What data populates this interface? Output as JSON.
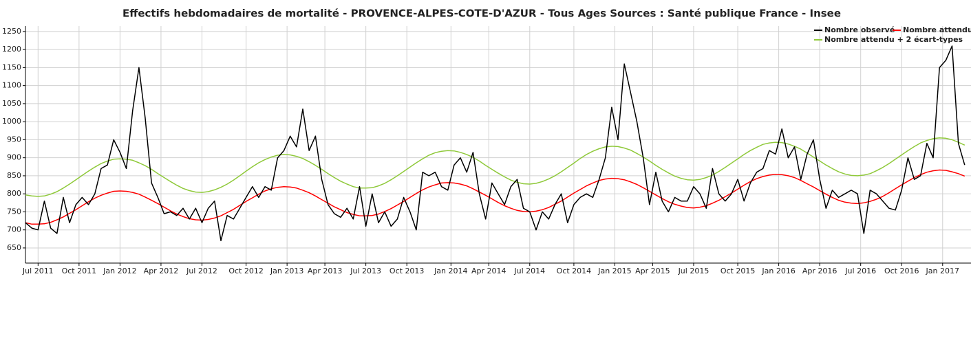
{
  "chart_data": {
    "type": "line",
    "title": "Effectifs hebdomadaires de mortalité - PROVENCE-ALPES-COTE-D'AZUR - Tous Ages Sources : Santé publique France - Insee",
    "x": [
      -4,
      -2,
      0,
      2,
      4,
      6,
      8,
      10,
      12,
      14,
      16,
      18,
      20,
      22,
      24,
      26,
      28,
      30,
      32,
      34,
      36,
      38,
      40,
      42,
      44,
      46,
      48,
      50,
      52,
      54,
      56,
      58,
      60,
      62,
      64,
      66,
      68,
      70,
      72,
      74,
      76,
      78,
      80,
      82,
      84,
      86,
      88,
      90,
      92,
      94,
      96,
      98,
      100,
      102,
      104,
      106,
      108,
      110,
      112,
      114,
      116,
      118,
      120,
      122,
      124,
      126,
      128,
      130,
      132,
      134,
      136,
      138,
      140,
      142,
      144,
      146,
      148,
      150,
      152,
      154,
      156,
      158,
      160,
      162,
      164,
      166,
      168,
      170,
      172,
      174,
      176,
      178,
      180,
      182,
      184,
      186,
      188,
      190,
      192,
      194,
      196,
      198,
      200,
      202,
      204,
      206,
      208,
      210,
      212,
      214,
      216,
      218,
      220,
      222,
      224,
      226,
      228,
      230,
      232,
      234,
      236,
      238,
      240,
      242,
      244,
      246,
      248,
      250,
      252,
      254,
      256,
      258,
      260,
      262,
      264,
      266,
      268,
      270,
      272,
      274,
      276,
      278,
      280,
      282,
      284,
      286,
      288,
      290,
      292,
      294
    ],
    "series": [
      {
        "name": "Nombre observé",
        "color": "#000000",
        "values": [
          720,
          705,
          700,
          780,
          705,
          690,
          790,
          720,
          770,
          790,
          770,
          800,
          870,
          880,
          950,
          915,
          870,
          1030,
          1150,
          1010,
          830,
          790,
          745,
          750,
          740,
          760,
          730,
          760,
          720,
          760,
          780,
          670,
          740,
          730,
          760,
          790,
          820,
          790,
          820,
          810,
          900,
          920,
          960,
          930,
          1035,
          920,
          960,
          840,
          770,
          745,
          735,
          760,
          730,
          820,
          710,
          800,
          720,
          750,
          710,
          730,
          790,
          750,
          700,
          860,
          850,
          860,
          820,
          810,
          880,
          900,
          860,
          915,
          800,
          730,
          830,
          800,
          770,
          820,
          840,
          760,
          750,
          700,
          750,
          730,
          770,
          800,
          720,
          770,
          790,
          800,
          790,
          840,
          900,
          1040,
          950,
          1160,
          1080,
          1000,
          900,
          770,
          860,
          780,
          750,
          790,
          780,
          780,
          820,
          800,
          760,
          870,
          800,
          780,
          800,
          840,
          780,
          830,
          860,
          870,
          920,
          910,
          980,
          900,
          930,
          840,
          910,
          950,
          840,
          760,
          810,
          790,
          800,
          810,
          800,
          690,
          810,
          800,
          780,
          760,
          755,
          810,
          900,
          840,
          850,
          940,
          900,
          1150,
          1170,
          1210,
          940,
          880
        ]
      },
      {
        "name": "Nombre attendu",
        "color": "#ff0000",
        "values": [
          720,
          716,
          716,
          717,
          721,
          728,
          736,
          746,
          756,
          767,
          778,
          788,
          796,
          802,
          807,
          808,
          807,
          804,
          799,
          791,
          782,
          773,
          763,
          753,
          744,
          737,
          731,
          728,
          727,
          729,
          733,
          739,
          748,
          757,
          768,
          779,
          789,
          799,
          808,
          814,
          818,
          820,
          819,
          816,
          810,
          803,
          794,
          784,
          774,
          764,
          756,
          748,
          743,
          739,
          739,
          740,
          744,
          751,
          759,
          769,
          779,
          790,
          801,
          811,
          819,
          825,
          830,
          831,
          830,
          827,
          822,
          814,
          805,
          796,
          786,
          776,
          767,
          760,
          754,
          751,
          750,
          752,
          756,
          762,
          771,
          780,
          791,
          802,
          812,
          822,
          830,
          837,
          841,
          843,
          842,
          839,
          833,
          826,
          817,
          807,
          797,
          787,
          778,
          771,
          766,
          762,
          761,
          763,
          767,
          774,
          782,
          792,
          802,
          813,
          824,
          834,
          842,
          848,
          852,
          854,
          853,
          850,
          845,
          837,
          828,
          819,
          809,
          799,
          790,
          782,
          777,
          774,
          773,
          775,
          779,
          785,
          793,
          803,
          814,
          825,
          835,
          845,
          853,
          860,
          864,
          866,
          865,
          861,
          856,
          849
        ]
      },
      {
        "name": "Nombre attendu + 2 écart-types",
        "color": "#8fc93a",
        "values": [
          797,
          794,
          793,
          794,
          799,
          806,
          816,
          827,
          839,
          851,
          863,
          874,
          884,
          891,
          896,
          897,
          896,
          893,
          886,
          878,
          868,
          856,
          845,
          834,
          824,
          815,
          809,
          805,
          804,
          806,
          811,
          818,
          827,
          838,
          850,
          863,
          875,
          886,
          895,
          902,
          907,
          909,
          908,
          904,
          898,
          889,
          879,
          868,
          856,
          845,
          835,
          827,
          820,
          816,
          816,
          817,
          822,
          829,
          839,
          850,
          862,
          874,
          886,
          897,
          907,
          914,
          918,
          920,
          919,
          915,
          909,
          901,
          891,
          879,
          868,
          857,
          847,
          838,
          832,
          828,
          827,
          829,
          834,
          841,
          850,
          861,
          873,
          885,
          898,
          909,
          918,
          925,
          930,
          932,
          931,
          927,
          921,
          912,
          902,
          891,
          879,
          868,
          858,
          849,
          843,
          839,
          838,
          840,
          845,
          852,
          862,
          873,
          885,
          897,
          909,
          920,
          929,
          937,
          941,
          943,
          942,
          938,
          932,
          924,
          913,
          902,
          891,
          880,
          870,
          861,
          855,
          851,
          850,
          852,
          856,
          864,
          873,
          884,
          896,
          908,
          920,
          931,
          941,
          948,
          953,
          955,
          954,
          950,
          943,
          935
        ]
      }
    ],
    "xlim": [
      -4,
      296
    ],
    "xticks": [
      {
        "value": 0,
        "label": "Jul 2011"
      },
      {
        "value": 13,
        "label": "Oct 2011"
      },
      {
        "value": 26,
        "label": "Jan 2012"
      },
      {
        "value": 39,
        "label": "Apr 2012"
      },
      {
        "value": 52,
        "label": "Jul 2012"
      },
      {
        "value": 66,
        "label": "Oct 2012"
      },
      {
        "value": 79,
        "label": "Jan 2013"
      },
      {
        "value": 91,
        "label": "Apr 2013"
      },
      {
        "value": 104,
        "label": "Jul 2013"
      },
      {
        "value": 117,
        "label": "Oct 2013"
      },
      {
        "value": 131,
        "label": "Jan 2014"
      },
      {
        "value": 143,
        "label": "Apr 2014"
      },
      {
        "value": 156,
        "label": "Jul 2014"
      },
      {
        "value": 170,
        "label": "Oct 2014"
      },
      {
        "value": 183,
        "label": "Jan 2015"
      },
      {
        "value": 195,
        "label": "Apr 2015"
      },
      {
        "value": 208,
        "label": "Jul 2015"
      },
      {
        "value": 222,
        "label": "Oct 2015"
      },
      {
        "value": 235,
        "label": "Jan 2016"
      },
      {
        "value": 248,
        "label": "Apr 2016"
      },
      {
        "value": 261,
        "label": "Jul 2016"
      },
      {
        "value": 274,
        "label": "Oct 2016"
      },
      {
        "value": 287,
        "label": "Jan 2017"
      }
    ],
    "ylim": [
      608,
      1265
    ],
    "yticks": [
      650,
      700,
      750,
      800,
      850,
      900,
      950,
      1000,
      1050,
      1100,
      1150,
      1200,
      1250
    ],
    "grid": true,
    "legend": "top-right"
  }
}
